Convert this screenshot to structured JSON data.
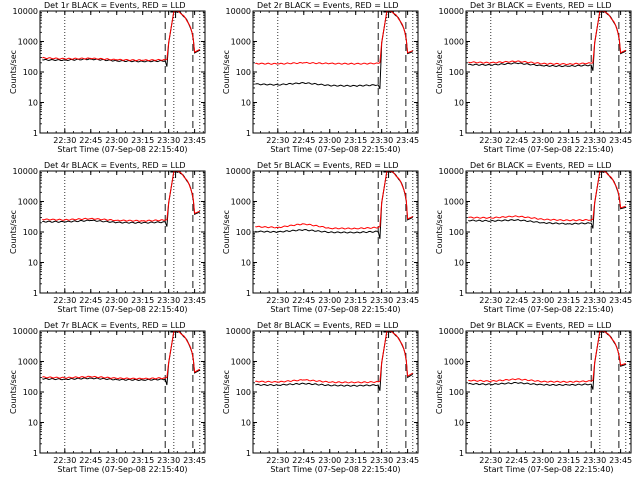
{
  "start_time_label": "Start Time (07-Sep-08 22:15:40)",
  "ylabel": "Counts/sec",
  "x_ticks": [
    "22:30",
    "22:45",
    "23:00",
    "23:15",
    "23:30",
    "23:45"
  ],
  "y_ticks": [
    "1",
    "10",
    "100",
    "1000",
    "10000"
  ],
  "series_colors": {
    "events": "#000000",
    "lld": "#ff0000"
  },
  "chart_data": [
    {
      "type": "line",
      "title": "Det 1r BLACK = Events, RED = LLD",
      "xlabel": "Start Time (07-Sep-08 22:15:40)",
      "ylabel": "Counts/sec",
      "ylim": [
        1,
        10000
      ],
      "yscale": "log",
      "x": [
        "22:17",
        "22:30",
        "22:45",
        "23:00",
        "23:15",
        "23:28",
        "23:29",
        "23:30",
        "23:33",
        "23:34",
        "23:36",
        "23:45",
        "23:48"
      ],
      "series": [
        {
          "name": "BLACK = Events",
          "values": [
            250,
            245,
            265,
            232,
            222,
            232,
            150,
            900,
            9500,
            10000,
            9500,
            420,
            520
          ]
        },
        {
          "name": "RED = LLD",
          "values": [
            290,
            270,
            280,
            252,
            242,
            252,
            260,
            950,
            9500,
            10000,
            9500,
            450,
            550
          ]
        }
      ]
    },
    {
      "type": "line",
      "title": "Det 2r BLACK = Events, RED = LLD",
      "xlabel": "Start Time (07-Sep-08 22:15:40)",
      "ylabel": "Counts/sec",
      "ylim": [
        1,
        10000
      ],
      "yscale": "log",
      "x": [
        "22:17",
        "22:30",
        "22:45",
        "23:00",
        "23:15",
        "23:28",
        "23:29",
        "23:30",
        "23:33",
        "23:34",
        "23:36",
        "23:45",
        "23:48"
      ],
      "series": [
        {
          "name": "BLACK = Events",
          "values": [
            40,
            38,
            44,
            36,
            35,
            38,
            28,
            900,
            9500,
            10000,
            9500,
            400,
            460
          ]
        },
        {
          "name": "RED = LLD",
          "values": [
            190,
            185,
            200,
            190,
            186,
            192,
            200,
            950,
            9500,
            10000,
            9500,
            430,
            500
          ]
        }
      ]
    },
    {
      "type": "line",
      "title": "Det 3r BLACK = Events, RED = LLD",
      "xlabel": "Start Time (07-Sep-08 22:15:40)",
      "ylabel": "Counts/sec",
      "ylim": [
        1,
        10000
      ],
      "yscale": "log",
      "x": [
        "22:17",
        "22:30",
        "22:45",
        "23:00",
        "23:15",
        "23:28",
        "23:29",
        "23:30",
        "23:33",
        "23:34",
        "23:36",
        "23:45",
        "23:48"
      ],
      "series": [
        {
          "name": "BLACK = Events",
          "values": [
            175,
            170,
            195,
            160,
            155,
            168,
            110,
            900,
            9500,
            10000,
            9500,
            400,
            480
          ]
        },
        {
          "name": "RED = LLD",
          "values": [
            210,
            200,
            225,
            188,
            182,
            195,
            200,
            950,
            9500,
            10000,
            9500,
            430,
            520
          ]
        }
      ]
    },
    {
      "type": "line",
      "title": "Det 4r BLACK = Events, RED = LLD",
      "xlabel": "Start Time (07-Sep-08 22:15:40)",
      "ylabel": "Counts/sec",
      "ylim": [
        1,
        10000
      ],
      "yscale": "log",
      "x": [
        "22:17",
        "22:30",
        "22:45",
        "23:00",
        "23:15",
        "23:28",
        "23:29",
        "23:30",
        "23:33",
        "23:34",
        "23:36",
        "23:45",
        "23:48"
      ],
      "series": [
        {
          "name": "BLACK = Events",
          "values": [
            220,
            215,
            240,
            205,
            200,
            212,
            150,
            900,
            9500,
            10000,
            9500,
            380,
            450
          ]
        },
        {
          "name": "RED = LLD",
          "values": [
            260,
            250,
            275,
            240,
            232,
            245,
            255,
            950,
            9500,
            10000,
            9500,
            410,
            480
          ]
        }
      ]
    },
    {
      "type": "line",
      "title": "Det 5r BLACK = Events, RED = LLD",
      "xlabel": "Start Time (07-Sep-08 22:15:40)",
      "ylabel": "Counts/sec",
      "ylim": [
        1,
        10000
      ],
      "yscale": "log",
      "x": [
        "22:17",
        "22:30",
        "22:45",
        "23:00",
        "23:15",
        "23:28",
        "23:29",
        "23:30",
        "23:33",
        "23:34",
        "23:36",
        "23:45",
        "23:48"
      ],
      "series": [
        {
          "name": "BLACK = Events",
          "values": [
            105,
            100,
            118,
            98,
            96,
            104,
            60,
            900,
            9500,
            10000,
            9500,
            250,
            300
          ]
        },
        {
          "name": "RED = LLD",
          "values": [
            150,
            140,
            185,
            132,
            130,
            140,
            150,
            950,
            9500,
            10000,
            9500,
            270,
            320
          ]
        }
      ]
    },
    {
      "type": "line",
      "title": "Det 6r BLACK = Events, RED = LLD",
      "xlabel": "Start Time (07-Sep-08 22:15:40)",
      "ylabel": "Counts/sec",
      "ylim": [
        1,
        10000
      ],
      "yscale": "log",
      "x": [
        "22:17",
        "22:30",
        "22:45",
        "23:00",
        "23:15",
        "23:28",
        "23:29",
        "23:30",
        "23:33",
        "23:34",
        "23:36",
        "23:45",
        "23:48"
      ],
      "series": [
        {
          "name": "BLACK = Events",
          "values": [
            240,
            230,
            250,
            200,
            185,
            195,
            130,
            900,
            9500,
            10000,
            9500,
            580,
            640
          ]
        },
        {
          "name": "RED = LLD",
          "values": [
            300,
            290,
            330,
            260,
            240,
            250,
            260,
            950,
            9500,
            10000,
            9500,
            620,
            700
          ]
        }
      ]
    },
    {
      "type": "line",
      "title": "Det 7r BLACK = Events, RED = LLD",
      "xlabel": "Start Time (07-Sep-08 22:15:40)",
      "ylabel": "Counts/sec",
      "ylim": [
        1,
        10000
      ],
      "yscale": "log",
      "x": [
        "22:17",
        "22:30",
        "22:45",
        "23:00",
        "23:15",
        "23:28",
        "23:29",
        "23:30",
        "23:33",
        "23:34",
        "23:36",
        "23:45",
        "23:48"
      ],
      "series": [
        {
          "name": "BLACK = Events",
          "values": [
            270,
            262,
            285,
            255,
            248,
            262,
            170,
            900,
            9500,
            10000,
            9500,
            420,
            520
          ]
        },
        {
          "name": "RED = LLD",
          "values": [
            305,
            292,
            318,
            282,
            272,
            288,
            300,
            950,
            9500,
            10000,
            9500,
            450,
            560
          ]
        }
      ]
    },
    {
      "type": "line",
      "title": "Det 8r BLACK = Events, RED = LLD",
      "xlabel": "Start Time (07-Sep-08 22:15:40)",
      "ylabel": "Counts/sec",
      "ylim": [
        1,
        10000
      ],
      "yscale": "log",
      "x": [
        "22:17",
        "22:30",
        "22:45",
        "23:00",
        "23:15",
        "23:28",
        "23:29",
        "23:30",
        "23:33",
        "23:34",
        "23:36",
        "23:45",
        "23:48"
      ],
      "series": [
        {
          "name": "BLACK = Events",
          "values": [
            172,
            168,
            190,
            165,
            160,
            170,
            110,
            900,
            9500,
            10000,
            9500,
            300,
            380
          ]
        },
        {
          "name": "RED = LLD",
          "values": [
            222,
            212,
            250,
            210,
            205,
            215,
            225,
            950,
            9500,
            10000,
            9500,
            330,
            420
          ]
        }
      ]
    },
    {
      "type": "line",
      "title": "Det 9r BLACK = Events, RED = LLD",
      "xlabel": "Start Time (07-Sep-08 22:15:40)",
      "ylabel": "Counts/sec",
      "ylim": [
        1,
        10000
      ],
      "yscale": "log",
      "x": [
        "22:17",
        "22:30",
        "22:45",
        "23:00",
        "23:15",
        "23:28",
        "23:29",
        "23:30",
        "23:33",
        "23:34",
        "23:36",
        "23:45",
        "23:48"
      ],
      "series": [
        {
          "name": "BLACK = Events",
          "values": [
            185,
            178,
            200,
            172,
            170,
            180,
            120,
            900,
            9500,
            10000,
            9500,
            700,
            800
          ]
        },
        {
          "name": "RED = LLD",
          "values": [
            240,
            225,
            265,
            220,
            215,
            228,
            240,
            950,
            9500,
            10000,
            9500,
            760,
            860
          ]
        }
      ]
    }
  ]
}
